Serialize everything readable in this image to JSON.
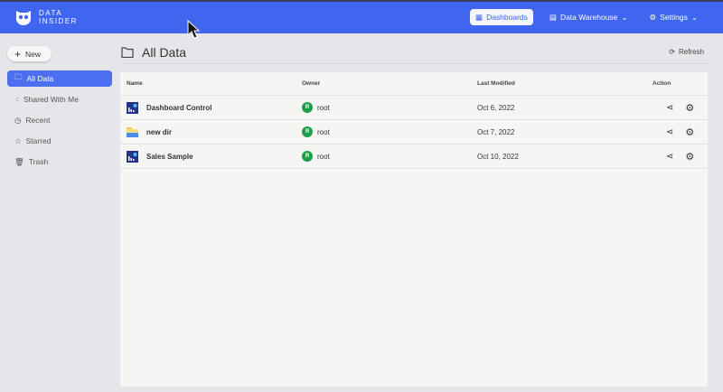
{
  "header": {
    "logo_line1": "DATA",
    "logo_line2": "INSIDER",
    "nav": [
      {
        "label": "Dashboards",
        "icon": "dashboard-icon",
        "active": true
      },
      {
        "label": "Data Warehouse",
        "icon": "database-icon"
      },
      {
        "label": "Settings",
        "icon": "gear-icon"
      }
    ]
  },
  "sidebar": {
    "new_label": "New",
    "items": [
      {
        "label": "All Data",
        "icon": "folder-icon",
        "active": true
      },
      {
        "label": "Shared With Me",
        "icon": "share-icon"
      },
      {
        "label": "Recent",
        "icon": "clock-icon"
      },
      {
        "label": "Starred",
        "icon": "star-icon"
      },
      {
        "label": "Trash",
        "icon": "trash-icon"
      }
    ]
  },
  "main": {
    "title": "All Data",
    "refresh_label": "Refresh",
    "columns": [
      "Name",
      "Owner",
      "Last Modified",
      "Action"
    ],
    "rows": [
      {
        "name": "Dashboard Control",
        "type": "dashboard",
        "owner_initial": "R",
        "owner": "root",
        "modified": "Oct 6, 2022"
      },
      {
        "name": "new dir",
        "type": "folder",
        "owner_initial": "R",
        "owner": "root",
        "modified": "Oct 7, 2022"
      },
      {
        "name": "Sales Sample",
        "type": "dashboard",
        "owner_initial": "R",
        "owner": "root",
        "modified": "Oct 10, 2022"
      }
    ]
  },
  "colors": {
    "header": "#4065ee",
    "owner_avatar": "#1e9e48"
  }
}
